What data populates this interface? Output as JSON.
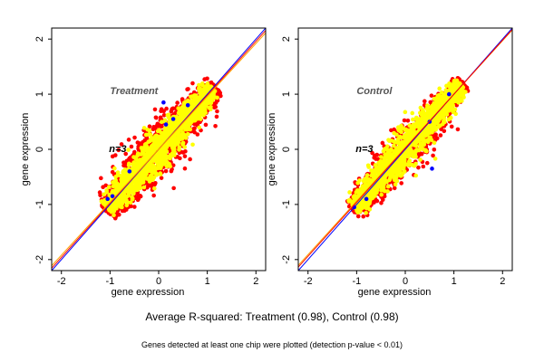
{
  "chart_data": [
    {
      "type": "scatter",
      "label": "Treatment",
      "n_label": "n=3",
      "xlabel": "gene expression",
      "ylabel": "gene expression",
      "xlim": [
        -2.2,
        2.2
      ],
      "ylim": [
        -2.2,
        2.2
      ],
      "ticks": [
        -2,
        -1,
        0,
        1,
        2
      ],
      "tick_labels": [
        "-2",
        "-1",
        "0",
        "1",
        "2"
      ],
      "grid": false,
      "point_colors": [
        "#0000ff",
        "#ff0000",
        "#ffff00"
      ],
      "cloud": {
        "x_range": [
          -1.1,
          1.15
        ],
        "halo_spread": 0.2,
        "core_spread": 0.12,
        "blue_points": [
          [
            -1.05,
            -0.9
          ],
          [
            -0.95,
            -0.85
          ],
          [
            0.15,
            0.45
          ],
          [
            0.3,
            0.55
          ],
          [
            -0.6,
            -0.4
          ],
          [
            0.6,
            0.8
          ],
          [
            0.1,
            0.85
          ]
        ]
      },
      "lines": [
        {
          "slope": 1.0,
          "intercept": 0.0,
          "color": "#0000ff"
        },
        {
          "slope": 0.98,
          "intercept": 0.0,
          "color": "#ff0000"
        },
        {
          "slope": 0.96,
          "intercept": 0.0,
          "color": "#ffa500"
        }
      ]
    },
    {
      "type": "scatter",
      "label": "Control",
      "n_label": "n=3",
      "xlabel": "gene expression",
      "ylabel": "gene expression",
      "xlim": [
        -2.2,
        2.2
      ],
      "ylim": [
        -2.2,
        2.2
      ],
      "ticks": [
        -2,
        -1,
        0,
        1,
        2
      ],
      "tick_labels": [
        "-2",
        "-1",
        "0",
        "1",
        "2"
      ],
      "grid": false,
      "point_colors": [
        "#0000ff",
        "#ff0000",
        "#ffff00"
      ],
      "cloud": {
        "x_range": [
          -1.1,
          1.2
        ],
        "halo_spread": 0.16,
        "core_spread": 0.12,
        "blue_points": [
          [
            -1.05,
            -1.05
          ],
          [
            0.55,
            -0.35
          ],
          [
            0.5,
            0.5
          ],
          [
            -0.8,
            -0.9
          ],
          [
            0.9,
            1.0
          ]
        ]
      },
      "lines": [
        {
          "slope": 1.0,
          "intercept": 0.0,
          "color": "#0000ff"
        },
        {
          "slope": 0.97,
          "intercept": 0.03,
          "color": "#ffa500"
        },
        {
          "slope": 0.98,
          "intercept": 0.02,
          "color": "#ff0000"
        }
      ]
    }
  ],
  "footer": {
    "summary": "Average R-squared: Treatment (0.98), Control (0.98)",
    "note": "Genes detected at least one chip were plotted (detection p-value < 0.01)"
  }
}
